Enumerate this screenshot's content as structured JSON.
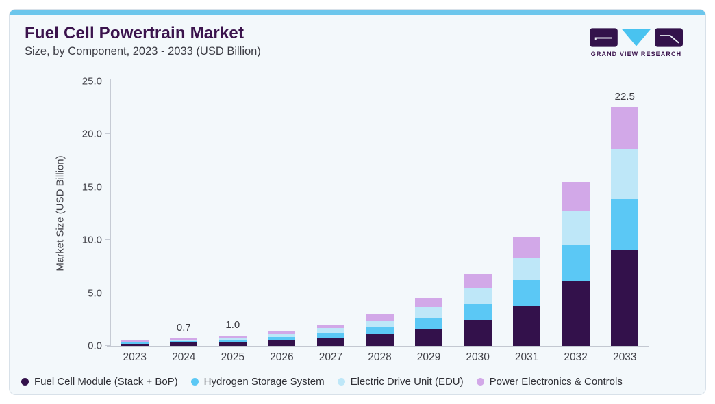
{
  "header": {
    "title": "Fuel Cell Powertrain Market",
    "subtitle": "Size, by Component, 2023 - 2033 (USD Billion)",
    "logo": {
      "text": "GRAND VIEW RESEARCH"
    }
  },
  "colors": {
    "accent_bar": "#6cc6ec",
    "card_background": "#f3f8fb",
    "card_border": "#d8e1e9",
    "title_text": "#3b134d",
    "axis_line": "#c6cbd4",
    "logo_purple": "#33124b",
    "logo_cyan": "#49c3f0"
  },
  "chart_data": {
    "type": "bar",
    "stacked": true,
    "title": "Fuel Cell Powertrain Market",
    "subtitle": "Size, by Component, 2023 - 2033 (USD Billion)",
    "ylabel": "Market Size (USD Billion)",
    "xlabel": "",
    "ylim": [
      0,
      25
    ],
    "yticks": [
      0,
      5,
      10,
      15,
      20,
      25
    ],
    "ytick_labels": [
      "0.0",
      "5.0",
      "10.0",
      "15.0",
      "20.0",
      "25.0"
    ],
    "grid": false,
    "legend_position": "bottom",
    "categories": [
      "2023",
      "2024",
      "2025",
      "2026",
      "2027",
      "2028",
      "2029",
      "2030",
      "2031",
      "2032",
      "2033"
    ],
    "series": [
      {
        "name": "Fuel Cell Module (Stack + BoP)",
        "color": "#33114b",
        "values": [
          0.2,
          0.3,
          0.4,
          0.55,
          0.75,
          1.1,
          1.6,
          2.45,
          3.8,
          6.1,
          9.0
        ]
      },
      {
        "name": "Hydrogen Storage System",
        "color": "#5bc8f5",
        "values": [
          0.1,
          0.15,
          0.2,
          0.3,
          0.45,
          0.65,
          1.05,
          1.5,
          2.4,
          3.4,
          4.9
        ]
      },
      {
        "name": "Electric Drive Unit (EDU)",
        "color": "#bee7f8",
        "values": [
          0.1,
          0.15,
          0.2,
          0.3,
          0.45,
          0.65,
          1.0,
          1.55,
          2.1,
          3.3,
          4.7
        ]
      },
      {
        "name": "Power Electronics & Controls",
        "color": "#d2a8e8",
        "values": [
          0.1,
          0.1,
          0.2,
          0.25,
          0.35,
          0.6,
          0.85,
          1.3,
          2.0,
          2.7,
          3.9
        ]
      }
    ],
    "totals": [
      0.5,
      0.7,
      1.0,
      1.4,
      2.0,
      3.0,
      4.5,
      6.8,
      10.3,
      15.5,
      22.5
    ],
    "bar_total_labels": [
      {
        "category": "2024",
        "text": "0.7"
      },
      {
        "category": "2025",
        "text": "1.0"
      },
      {
        "category": "2033",
        "text": "22.5"
      }
    ]
  }
}
